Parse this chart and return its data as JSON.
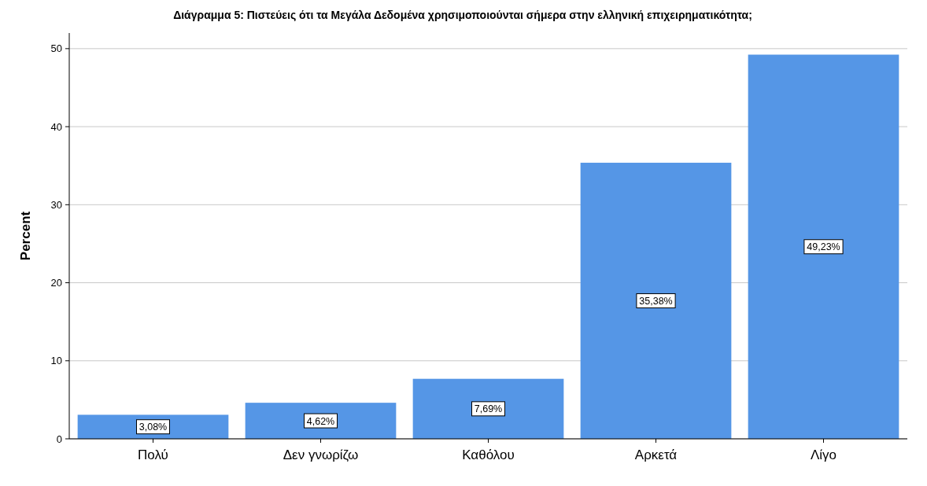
{
  "chart_data": {
    "type": "bar",
    "title": "Διάγραμμα 5: Πιστεύεις ότι τα Μεγάλα Δεδομένα χρησιμοποιούνται σήμερα στην ελληνική επιχειρηματικότητα;",
    "ylabel": "Percent",
    "categories": [
      "Πολύ",
      "Δεν γνωρίζω",
      "Καθόλου",
      "Αρκετά",
      "Λίγο"
    ],
    "values": [
      3.08,
      4.62,
      7.69,
      35.38,
      49.23
    ],
    "value_labels": [
      "3,08%",
      "4,62%",
      "7,69%",
      "35,38%",
      "49,23%"
    ],
    "color": "#5596e6",
    "ylim": [
      0,
      52
    ],
    "yticks": [
      0,
      10,
      20,
      30,
      40,
      50
    ],
    "grid": "y"
  }
}
